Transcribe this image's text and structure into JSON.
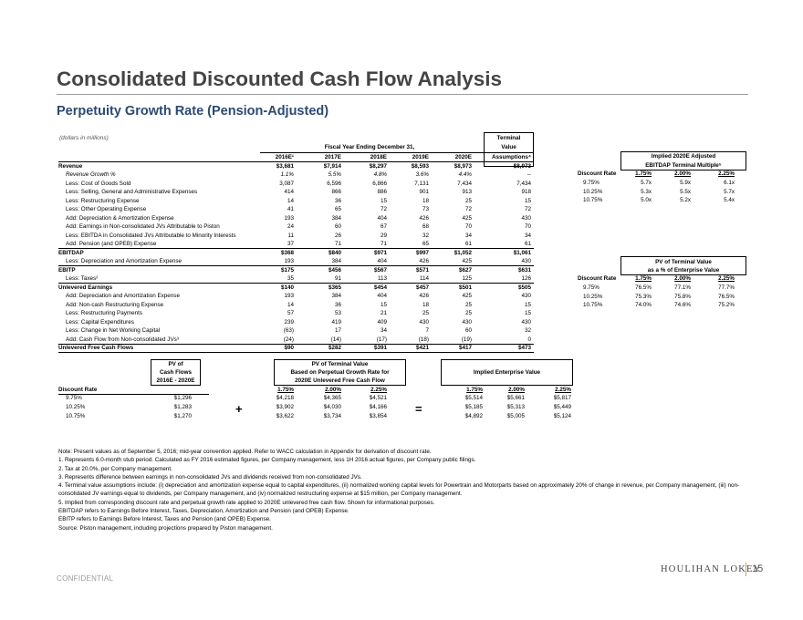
{
  "title": "Consolidated Discounted Cash Flow Analysis",
  "subtitle": "Perpetuity Growth Rate (Pension-Adjusted)",
  "units_note": "(dollars in millions)",
  "main_table": {
    "period_header": "Fiscal Year Ending December 31,",
    "terminal_header_1": "Terminal",
    "terminal_header_2": "Value",
    "columns": [
      "2016E¹",
      "2017E",
      "2018E",
      "2019E",
      "2020E",
      "Assumptions⁴"
    ],
    "rows": [
      {
        "label": "Revenue",
        "values": [
          "$3,681",
          "$7,914",
          "$8,297",
          "$8,593",
          "$8,973",
          "$8,973"
        ]
      },
      {
        "label": "Revenue Growth %",
        "values": [
          "1.1%",
          "5.5%",
          "4.8%",
          "3.6%",
          "4.4%",
          "--"
        ]
      },
      {
        "label": "Less: Cost of Goods Sold",
        "values": [
          "3,087",
          "6,596",
          "6,866",
          "7,131",
          "7,434",
          "7,434"
        ]
      },
      {
        "label": "Less: Selling, General and Administrative Expenses",
        "values": [
          "414",
          "866",
          "886",
          "901",
          "913",
          "918"
        ]
      },
      {
        "label": "Less: Restructuring Expense",
        "values": [
          "14",
          "36",
          "15",
          "18",
          "25",
          "15"
        ]
      },
      {
        "label": "Less: Other Operating Expense",
        "values": [
          "41",
          "65",
          "72",
          "73",
          "72",
          "72"
        ]
      },
      {
        "label": "Add: Depreciation & Amortization Expense",
        "values": [
          "193",
          "384",
          "404",
          "426",
          "425",
          "430"
        ]
      },
      {
        "label": "Add: Earnings in Non-consolidated JVs Attributable to Piston",
        "values": [
          "24",
          "60",
          "67",
          "68",
          "70",
          "70"
        ]
      },
      {
        "label": "Less: EBITDA in Consolidated JVs Attributable to Minority Interests",
        "values": [
          "11",
          "26",
          "29",
          "32",
          "34",
          "34"
        ]
      },
      {
        "label": "Add: Pension (and OPEB) Expense",
        "values": [
          "37",
          "71",
          "71",
          "65",
          "61",
          "61"
        ]
      },
      {
        "label": "EBITDAP",
        "values": [
          "$368",
          "$840",
          "$971",
          "$997",
          "$1,052",
          "$1,061"
        ]
      },
      {
        "label": "Less: Depreciation and Amortization Expense",
        "values": [
          "193",
          "384",
          "404",
          "426",
          "425",
          "430"
        ]
      },
      {
        "label": "EBITP",
        "values": [
          "$175",
          "$456",
          "$567",
          "$571",
          "$627",
          "$631"
        ]
      },
      {
        "label": "Less: Taxes²",
        "values": [
          "35",
          "91",
          "113",
          "114",
          "125",
          "126"
        ]
      },
      {
        "label": "Unlevered Earnings",
        "values": [
          "$140",
          "$365",
          "$454",
          "$457",
          "$501",
          "$505"
        ]
      },
      {
        "label": "Add: Depreciation and Amortization Expense",
        "values": [
          "193",
          "384",
          "404",
          "426",
          "425",
          "430"
        ]
      },
      {
        "label": "Add: Non-cash Restructuring Expense",
        "values": [
          "14",
          "36",
          "15",
          "18",
          "25",
          "15"
        ]
      },
      {
        "label": "Less: Restructuring Payments",
        "values": [
          "57",
          "53",
          "21",
          "25",
          "25",
          "15"
        ]
      },
      {
        "label": "Less: Capital Expenditures",
        "values": [
          "239",
          "419",
          "409",
          "430",
          "430",
          "430"
        ]
      },
      {
        "label": "Less: Change in Net Working Capital",
        "values": [
          "(63)",
          "17",
          "34",
          "7",
          "60",
          "32"
        ]
      },
      {
        "label": "Add: Cash Flow from Non-consolidated JVs³",
        "values": [
          "(24)",
          "(14)",
          "(17)",
          "(18)",
          "(19)",
          "0"
        ]
      },
      {
        "label": "Unlevered Free Cash Flows",
        "values": [
          "$90",
          "$282",
          "$391",
          "$421",
          "$417",
          "$473"
        ]
      }
    ]
  },
  "implied_multiple": {
    "title_1": "Implied 2020E Adjusted",
    "title_2": "EBITDAP Terminal Multiple⁵",
    "row_header": "Discount Rate",
    "columns": [
      "1.75%",
      "2.00%",
      "2.25%"
    ],
    "rows": [
      {
        "rate": "9.75%",
        "values": [
          "5.7x",
          "5.9x",
          "6.1x"
        ]
      },
      {
        "rate": "10.25%",
        "values": [
          "5.3x",
          "5.5x",
          "5.7x"
        ]
      },
      {
        "rate": "10.75%",
        "values": [
          "5.0x",
          "5.2x",
          "5.4x"
        ]
      }
    ]
  },
  "pv_terminal_pct": {
    "title_1": "PV of Terminal Value",
    "title_2": "as a % of Enterprise Value",
    "row_header": "Discount Rate",
    "columns": [
      "1.75%",
      "2.00%",
      "2.25%"
    ],
    "rows": [
      {
        "rate": "9.75%",
        "values": [
          "76.5%",
          "77.1%",
          "77.7%"
        ]
      },
      {
        "rate": "10.25%",
        "values": [
          "75.3%",
          "75.8%",
          "76.5%"
        ]
      },
      {
        "rate": "10.75%",
        "values": [
          "74.0%",
          "74.6%",
          "75.2%"
        ]
      }
    ]
  },
  "bottom": {
    "discount_rate_header": "Discount Rate",
    "pv_cf_header": [
      "PV of",
      "Cash Flows",
      "2016E - 2020E"
    ],
    "pv_tv_header": [
      "PV of Terminal Value",
      "Based on Perpetual Growth Rate for",
      "2020E Unlevered Free Cash Flow"
    ],
    "ev_header": "Implied Enterprise Value",
    "growth_columns": [
      "1.75%",
      "2.00%",
      "2.25%"
    ],
    "plus_sign": "+",
    "equals_sign": "=",
    "rows": [
      {
        "rate": "9.75%",
        "pv_cf": "$1,296",
        "pv_tv": [
          "$4,218",
          "$4,365",
          "$4,521"
        ],
        "ev": [
          "$5,514",
          "$5,661",
          "$5,817"
        ]
      },
      {
        "rate": "10.25%",
        "pv_cf": "$1,283",
        "pv_tv": [
          "$3,902",
          "$4,030",
          "$4,166"
        ],
        "ev": [
          "$5,185",
          "$5,313",
          "$5,449"
        ]
      },
      {
        "rate": "10.75%",
        "pv_cf": "$1,270",
        "pv_tv": [
          "$3,622",
          "$3,734",
          "$3,854"
        ],
        "ev": [
          "$4,892",
          "$5,005",
          "$5,124"
        ]
      }
    ]
  },
  "notes": [
    "Note: Present values as of September 5, 2016; mid-year convention applied. Refer to WACC calculation in Appendix for derivation of discount rate.",
    "1. Represents 6.0-month stub period. Calculated as FY 2016 estimated figures, per Company management, less 1H 2016 actual figures, per Company public filings.",
    "2. Tax at 20.0%, per Company management.",
    "3. Represents difference between earnings in non-consolidated JVs and dividends received from non-consolidated JVs.",
    "4. Terminal value assumptions include: (i) depreciation and amortization expense equal to capital expenditures, (ii) normalized working capital levels for Powertrain and Motorparts based on approximately 20% of change in revenue, per Company management, (iii) non-consolidated JV earnings equal to dividends, per Company management, and (iv) normalized restructuring expense at $15 million, per Company management.",
    "5. Implied from corresponding discount rate and perpetual growth rate applied to 2020E unlevered free cash flow. Shown for informational purposes.",
    "EBITDAP refers to Earnings Before Interest, Taxes, Depreciation, Amortization and Pension (and OPEB) Expense.",
    "EBITP refers to Earnings Before Interest, Taxes and Pension (and OPEB) Expense.",
    "Source: Piston management, including projections prepared by Piston management."
  ],
  "footer": {
    "confidential": "CONFIDENTIAL",
    "logo": "HOULIHAN LOKEY",
    "page": "15"
  },
  "colors": {
    "title": "#444444",
    "subtitle": "#2c4a73",
    "footer": "#9a9a9a",
    "logo_bar": "#b9a57a"
  }
}
